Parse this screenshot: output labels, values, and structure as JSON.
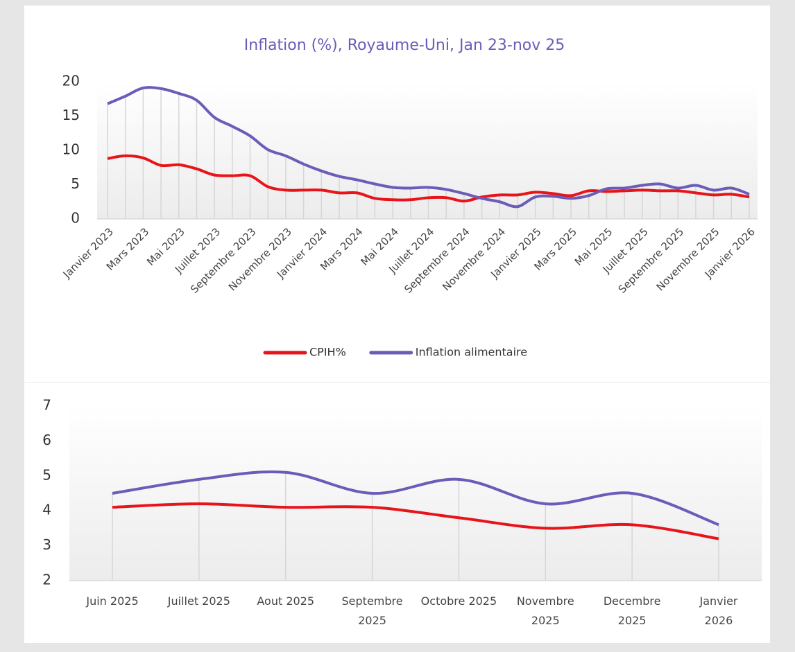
{
  "chart_data": [
    {
      "type": "line",
      "title": "Inflation (%), Royaume-Uni, Jan 23-nov 25",
      "categories": [
        "Janvier 2023",
        null,
        "Mars 2023",
        null,
        "Mai 2023",
        null,
        "Juillet 2023",
        null,
        "Septembre 2023",
        null,
        "Novembre 2023",
        null,
        "Janvier 2024",
        null,
        "Mars 2024",
        null,
        "Mai 2024",
        null,
        "Juillet 2024",
        null,
        "Septembre 2024",
        null,
        "Novembre 2024",
        null,
        "Janvier 2025",
        null,
        "Mars 2025",
        null,
        "Mai 2025",
        null,
        "Juillet 2025",
        null,
        "Septembre 2025",
        null,
        "Novembre 2025",
        null,
        "Janvier 2026"
      ],
      "series": [
        {
          "name": "CPIH%",
          "color": "#e8141b",
          "values": [
            8.8,
            9.2,
            8.9,
            7.8,
            7.9,
            7.3,
            6.4,
            6.3,
            6.3,
            4.7,
            4.2,
            4.2,
            4.2,
            3.8,
            3.8,
            3.0,
            2.8,
            2.8,
            3.1,
            3.1,
            2.6,
            3.2,
            3.5,
            3.5,
            3.9,
            3.7,
            3.4,
            4.1,
            4.0,
            4.1,
            4.2,
            4.1,
            4.1,
            3.8,
            3.5,
            3.6,
            3.2
          ]
        },
        {
          "name": "Inflation alimentaire",
          "color": "#6b5cb8",
          "values": [
            16.8,
            17.9,
            19.1,
            19.0,
            18.3,
            17.3,
            14.8,
            13.5,
            12.1,
            10.1,
            9.2,
            8.0,
            7.0,
            6.2,
            5.7,
            5.1,
            4.6,
            4.5,
            4.6,
            4.3,
            3.7,
            3.0,
            2.5,
            1.8,
            3.2,
            3.3,
            3.0,
            3.4,
            4.4,
            4.5,
            4.9,
            5.1,
            4.5,
            4.9,
            4.2,
            4.5,
            3.6
          ]
        }
      ],
      "ylim": [
        0,
        20
      ],
      "yticks": [
        0,
        5,
        10,
        15,
        20
      ],
      "legend": "bottom"
    },
    {
      "type": "line",
      "categories": [
        "Juin 2025",
        "Juillet 2025",
        "Aout 2025",
        "Septembre 2025",
        "Octobre 2025",
        "Novembre 2025",
        "Decembre 2025",
        "Janvier 2026"
      ],
      "series": [
        {
          "color": "#e8141b",
          "values": [
            4.1,
            4.2,
            4.1,
            4.1,
            3.8,
            3.5,
            3.6,
            3.2
          ]
        },
        {
          "color": "#6b5cb8",
          "values": [
            4.5,
            4.9,
            5.1,
            4.5,
            4.9,
            4.2,
            4.5,
            3.6
          ]
        }
      ],
      "ylim": [
        2,
        7
      ],
      "yticks": [
        2,
        3,
        4,
        5,
        6,
        7
      ]
    }
  ]
}
